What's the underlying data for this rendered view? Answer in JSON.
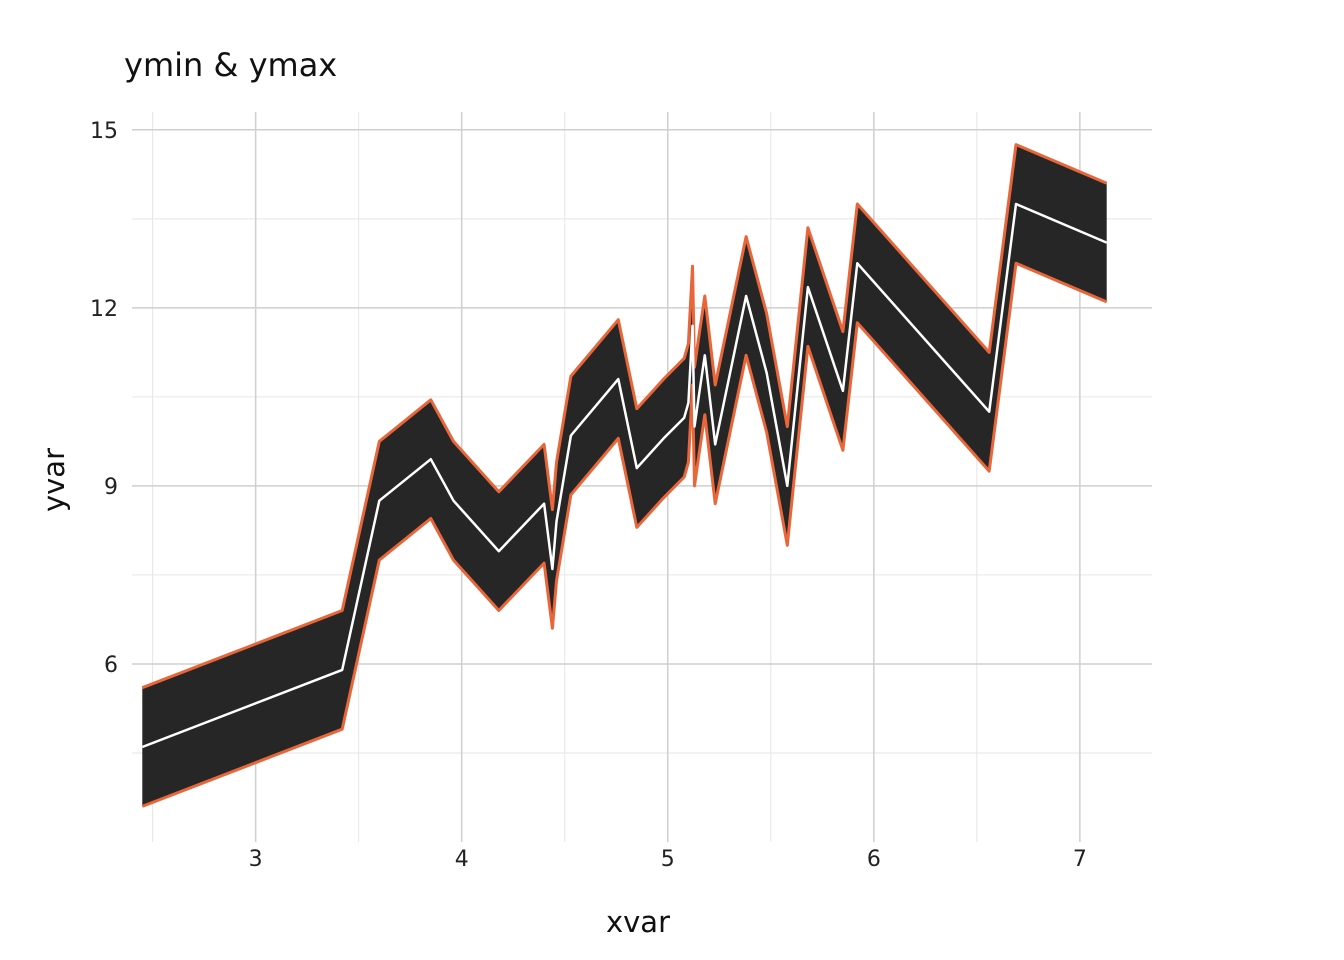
{
  "chart_data": {
    "type": "area",
    "title": "ymin & ymax",
    "xlabel": "xvar",
    "ylabel": "yvar",
    "xlim": [
      2.4,
      7.35
    ],
    "ylim": [
      3.0,
      15.3
    ],
    "x_ticks": [
      3,
      4,
      5,
      6,
      7
    ],
    "x_minor_ticks": [
      2.5,
      3.5,
      4.5,
      5.5,
      6.5
    ],
    "y_ticks": [
      6,
      9,
      12,
      15
    ],
    "y_minor_ticks": [
      4.5,
      7.5,
      10.5,
      13.5
    ],
    "grid": true,
    "colors": {
      "band_fill": "#262626",
      "ribbon_edge": "#e8663a",
      "center_line": "#ffffff"
    },
    "x": [
      2.45,
      3.42,
      3.6,
      3.85,
      3.96,
      4.18,
      4.4,
      4.44,
      4.46,
      4.53,
      4.76,
      4.85,
      4.98,
      5.08,
      5.1,
      5.12,
      5.13,
      5.15,
      5.18,
      5.23,
      5.38,
      5.48,
      5.58,
      5.68,
      5.85,
      5.92,
      6.56,
      6.69,
      7.13
    ],
    "y": [
      4.6,
      5.9,
      8.75,
      9.45,
      8.75,
      7.9,
      8.7,
      7.6,
      8.4,
      9.85,
      10.8,
      9.3,
      9.8,
      10.15,
      10.4,
      11.7,
      10.0,
      10.5,
      11.2,
      9.7,
      12.2,
      10.9,
      9.0,
      12.35,
      10.6,
      12.75,
      10.25,
      13.75,
      13.1
    ],
    "ymin": [
      3.6,
      4.9,
      7.75,
      8.45,
      7.75,
      6.9,
      7.7,
      6.6,
      7.4,
      8.85,
      9.8,
      8.3,
      8.8,
      9.15,
      9.4,
      10.7,
      9.0,
      9.5,
      10.2,
      8.7,
      11.2,
      9.9,
      8.0,
      11.35,
      9.6,
      11.75,
      9.25,
      12.75,
      12.1
    ],
    "ymax": [
      5.6,
      6.9,
      9.75,
      10.45,
      9.75,
      8.9,
      9.7,
      8.6,
      9.4,
      10.85,
      11.8,
      10.3,
      10.8,
      11.15,
      11.4,
      12.7,
      11.0,
      11.5,
      12.2,
      10.7,
      13.2,
      11.9,
      10.0,
      13.35,
      11.6,
      13.75,
      11.25,
      14.75,
      14.1
    ]
  }
}
